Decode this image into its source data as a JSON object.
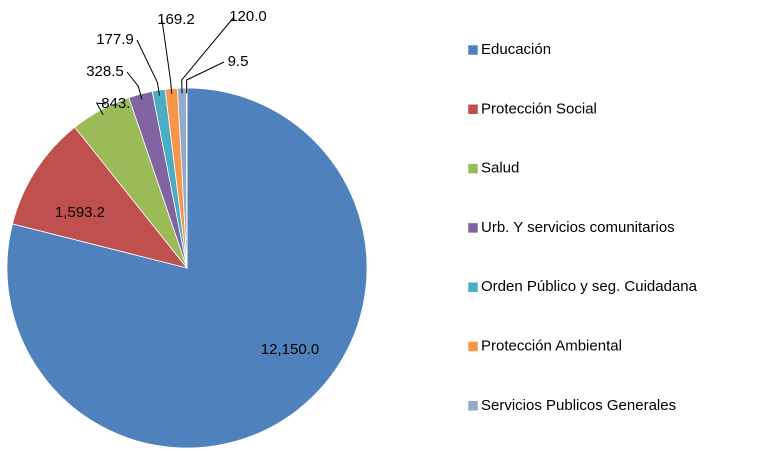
{
  "chart_data": {
    "type": "pie",
    "categories": [
      "Educación",
      "Protección Social",
      "Salud",
      "Urb. Y servicios comunitarios",
      "Orden Público y seg. Cuidadana",
      "Protección Ambiental",
      "Servicios Publicos Generales",
      null
    ],
    "values": [
      12150.0,
      1593.2,
      843.3,
      328.5,
      177.9,
      169.2,
      120.0,
      9.5
    ],
    "value_labels": [
      "12,150.0",
      "1,593.2",
      "843.3",
      "328.5",
      "177.9",
      "169.2",
      "120.0",
      "9.5"
    ],
    "colors": [
      "#4f81bd",
      "#c0504d",
      "#9bbb59",
      "#8064a2",
      "#4bacc6",
      "#f79646",
      "#95a9cc",
      "#c6d3e6"
    ],
    "legend": "right"
  }
}
